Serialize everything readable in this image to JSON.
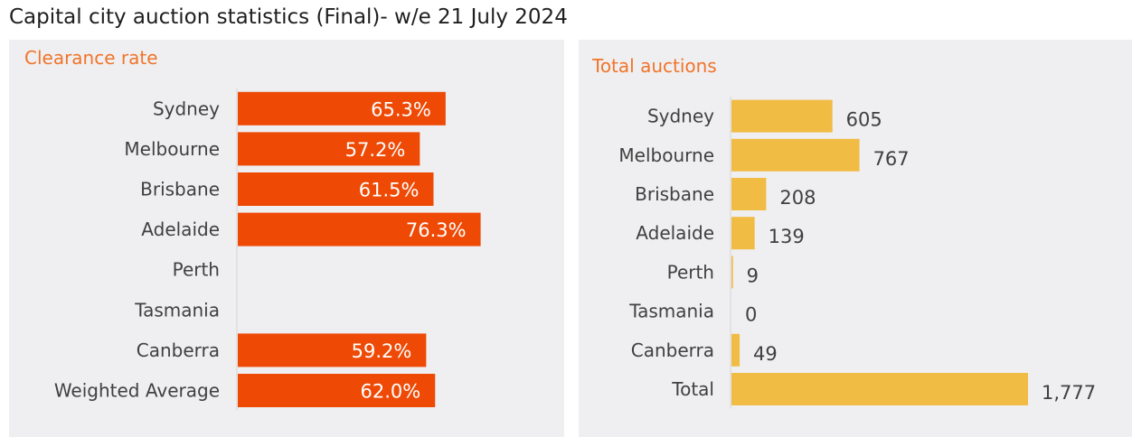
{
  "title": "Capital city auction statistics (Final)- w/e 21 July 2024",
  "colors": {
    "title_text": "#1f1f1f",
    "panel_title": "#f0742a",
    "clearance_bar": "#ee4a06",
    "total_bar": "#f1bc44",
    "label_text": "#404040",
    "axis_line": "#d6d6d6"
  },
  "chart_data": [
    {
      "type": "bar",
      "orientation": "horizontal",
      "title": "Clearance rate",
      "categories": [
        "Sydney",
        "Melbourne",
        "Brisbane",
        "Adelaide",
        "Perth",
        "Tasmania",
        "Canberra",
        "Weighted Average"
      ],
      "values": [
        65.3,
        57.2,
        61.5,
        76.3,
        null,
        null,
        59.2,
        62.0
      ],
      "value_labels": [
        "65.3%",
        "57.2%",
        "61.5%",
        "76.3%",
        "",
        "",
        "59.2%",
        "62.0%"
      ],
      "xlim": [
        0,
        100
      ],
      "grid": false,
      "legend": "none"
    },
    {
      "type": "bar",
      "orientation": "horizontal",
      "title": "Total auctions",
      "categories": [
        "Sydney",
        "Melbourne",
        "Brisbane",
        "Adelaide",
        "Perth",
        "Tasmania",
        "Canberra",
        "Total"
      ],
      "values": [
        605,
        767,
        208,
        139,
        9,
        0,
        49,
        1777
      ],
      "value_labels": [
        "605",
        "767",
        "208",
        "139",
        "9",
        "0",
        "49",
        "1,777"
      ],
      "xlim": [
        0,
        1777
      ],
      "grid": false,
      "legend": "none"
    }
  ]
}
